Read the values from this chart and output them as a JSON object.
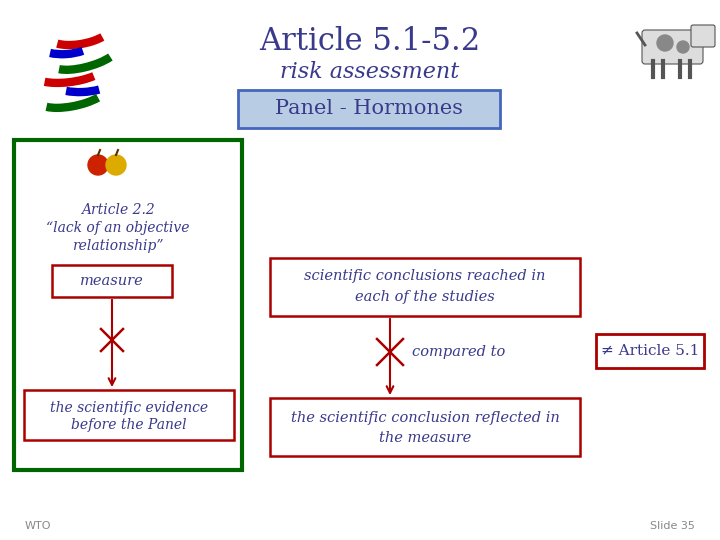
{
  "title": "Article 5.1-5.2",
  "subtitle": "risk assessment",
  "panel_label": "Panel - Hormones",
  "box_measure": "measure",
  "box_evidence": "the scientific evidence\nbefore the Panel",
  "box_conclusions": "scientific conclusions reached in\neach of the studies",
  "box_conclusion_reflected": "the scientific conclusion reflected in\nthe measure",
  "label_compared": "compared to",
  "label_article51": "≠ Article 5.1",
  "footer_left": "WTO",
  "footer_right": "Slide 35",
  "bg_color": "#ffffff",
  "title_color": "#3a3a8c",
  "panel_box_edgecolor": "#4466bb",
  "panel_box_facecolor": "#b8cce4",
  "panel_text_color": "#3a3a8c",
  "green_border_color": "#006600",
  "red_color": "#aa0000",
  "blue_text_color": "#3a3a8c",
  "footer_color": "#888888",
  "wto_colors": [
    "#cc0000",
    "#0000cc",
    "#006600"
  ],
  "apple_color1": "#cc2200",
  "apple_color2": "#ddaa00"
}
